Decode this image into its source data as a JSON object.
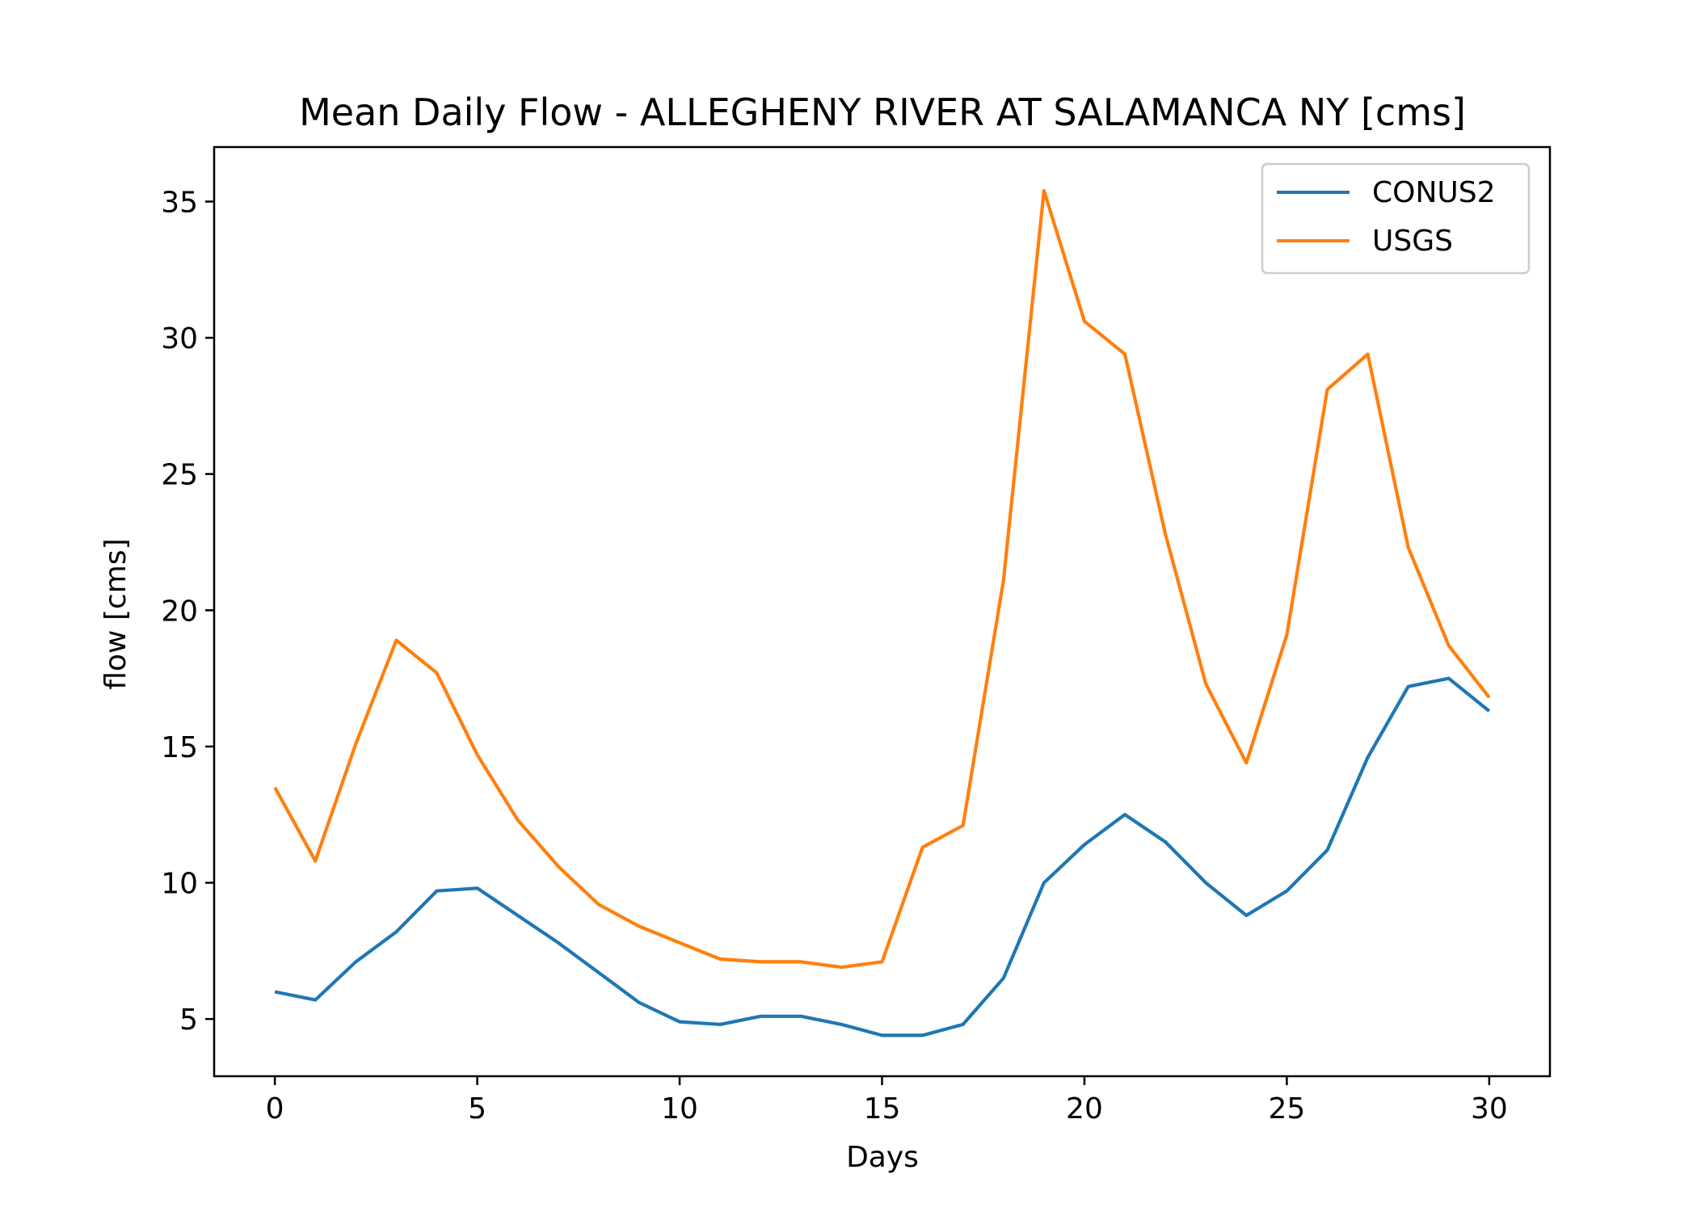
{
  "chart_data": {
    "type": "line",
    "title": "Mean Daily Flow - ALLEGHENY RIVER AT SALAMANCA NY [cms]",
    "xlabel": "Days",
    "ylabel": "flow [cms]",
    "xlim": [
      -1.5,
      31.5
    ],
    "ylim": [
      2.9,
      37.0
    ],
    "xticks": [
      0,
      5,
      10,
      15,
      20,
      25,
      30
    ],
    "yticks": [
      5,
      10,
      15,
      20,
      25,
      30,
      35
    ],
    "grid": false,
    "legend_position": "top-right",
    "x": [
      0,
      1,
      2,
      3,
      4,
      5,
      6,
      7,
      8,
      9,
      10,
      11,
      12,
      13,
      14,
      15,
      16,
      17,
      18,
      19,
      20,
      21,
      22,
      23,
      24,
      25,
      26,
      27,
      28,
      29,
      30
    ],
    "series": [
      {
        "name": "CONUS2",
        "color": "#1f77b4",
        "values": [
          6.0,
          5.7,
          7.1,
          8.2,
          9.7,
          9.8,
          8.8,
          7.8,
          6.7,
          5.6,
          4.9,
          4.8,
          5.1,
          5.1,
          4.8,
          4.4,
          4.4,
          4.8,
          6.5,
          10.0,
          11.4,
          12.5,
          11.5,
          10.0,
          8.8,
          9.7,
          11.2,
          14.6,
          17.2,
          17.5,
          16.3
        ]
      },
      {
        "name": "USGS",
        "color": "#ff7f0e",
        "values": [
          13.5,
          10.8,
          15.1,
          18.9,
          17.7,
          14.7,
          12.3,
          10.6,
          9.2,
          8.4,
          7.8,
          7.2,
          7.1,
          7.1,
          6.9,
          7.1,
          11.3,
          12.1,
          21.1,
          35.4,
          30.6,
          29.4,
          22.8,
          17.3,
          14.4,
          19.1,
          28.1,
          29.4,
          22.3,
          18.7,
          16.8
        ]
      }
    ]
  }
}
